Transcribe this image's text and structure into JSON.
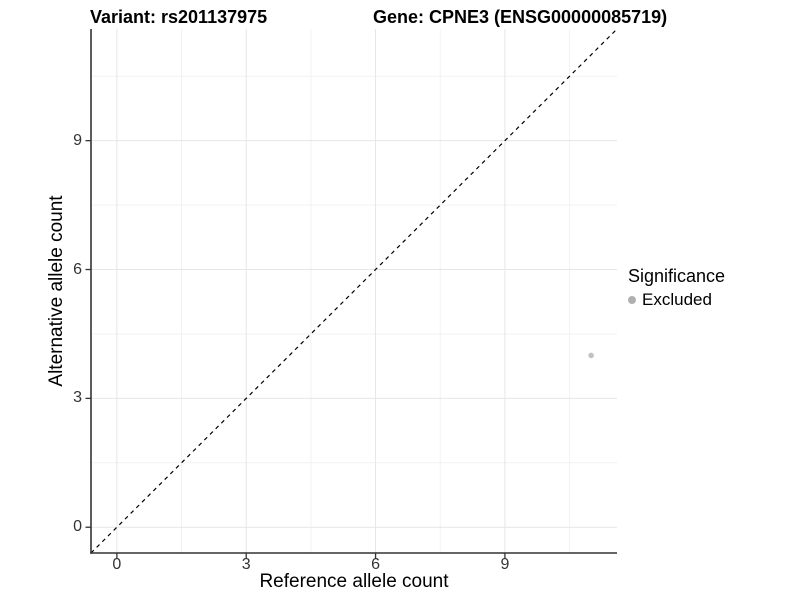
{
  "chart_data": {
    "type": "scatter",
    "titles": {
      "left": "Variant: rs201137975",
      "right": "Gene: CPNE3 (ENSG00000085719)"
    },
    "xlabel": "Reference allele count",
    "ylabel": "Alternative allele count",
    "xlim": [
      -0.6,
      11.6
    ],
    "ylim": [
      -0.6,
      11.6
    ],
    "xticks": [
      0,
      3,
      6,
      9
    ],
    "yticks": [
      0,
      3,
      6,
      9
    ],
    "minor_gridlines_x": [
      1.5,
      4.5,
      7.5,
      10.5
    ],
    "minor_gridlines_y": [
      1.5,
      4.5,
      7.5,
      10.5
    ],
    "grid": "major and minor, light gray on white",
    "identity_line": {
      "style": "dashed",
      "slope": 1,
      "intercept": 0,
      "color": "#000000"
    },
    "series": [
      {
        "name": "Excluded",
        "color": "#c2c2c2",
        "points": [
          {
            "x": 11,
            "y": 4
          }
        ]
      }
    ],
    "legend": {
      "title": "Significance",
      "position": "right",
      "items": [
        {
          "label": "Excluded",
          "marker": "circle",
          "color": "#b0b0b0"
        }
      ]
    }
  }
}
